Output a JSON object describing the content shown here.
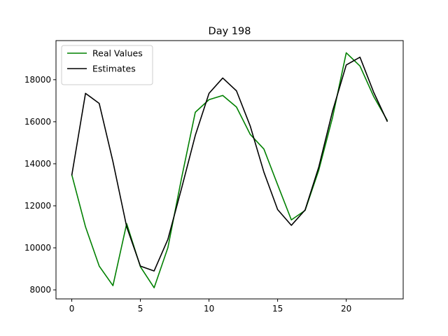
{
  "chart_data": {
    "type": "line",
    "title": "Day 198",
    "xlabel": "",
    "ylabel": "",
    "xlim": [
      -1.15,
      24.15
    ],
    "ylim": [
      7570,
      19860
    ],
    "xticks": [
      0,
      5,
      10,
      15,
      20
    ],
    "yticks": [
      8000,
      10000,
      12000,
      14000,
      16000,
      18000
    ],
    "x": [
      0,
      1,
      2,
      3,
      4,
      5,
      6,
      7,
      8,
      9,
      10,
      11,
      12,
      13,
      14,
      15,
      16,
      17,
      18,
      19,
      20,
      21,
      22,
      23
    ],
    "series": [
      {
        "name": "Real Values",
        "color": "#008000",
        "values": [
          13480,
          11000,
          9130,
          8200,
          11150,
          9100,
          8100,
          10000,
          13320,
          16450,
          17050,
          17250,
          16700,
          15400,
          14700,
          13000,
          11330,
          11780,
          13700,
          16200,
          19280,
          18650,
          17200,
          16050
        ]
      },
      {
        "name": "Estimates",
        "color": "#000000",
        "values": [
          13450,
          17350,
          16870,
          14100,
          11000,
          9130,
          8900,
          10400,
          12830,
          15350,
          17350,
          18080,
          17470,
          15800,
          13600,
          11820,
          11070,
          11800,
          13850,
          16500,
          18700,
          19070,
          17400,
          16000
        ]
      }
    ],
    "legend_position": "top-left",
    "grid": false
  }
}
